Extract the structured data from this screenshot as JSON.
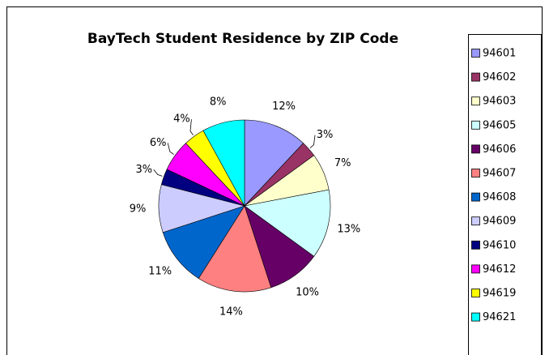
{
  "chart_data": {
    "type": "pie",
    "title": "BayTech Student Residence by ZIP Code",
    "categories": [
      "94601",
      "94602",
      "94603",
      "94605",
      "94606",
      "94607",
      "94608",
      "94609",
      "94610",
      "94612",
      "94619",
      "94621"
    ],
    "values": [
      12,
      3,
      7,
      13,
      10,
      14,
      11,
      9,
      3,
      6,
      4,
      8
    ],
    "value_labels": [
      "12%",
      "3%",
      "7%",
      "13%",
      "10%",
      "14%",
      "11%",
      "9%",
      "3%",
      "6%",
      "4%",
      "8%"
    ],
    "colors": [
      "#9999ff",
      "#993366",
      "#ffffcc",
      "#ccffff",
      "#660066",
      "#ff8080",
      "#0066cc",
      "#ccccff",
      "#000080",
      "#ff00ff",
      "#ffff00",
      "#00ffff"
    ],
    "legend": "right"
  }
}
